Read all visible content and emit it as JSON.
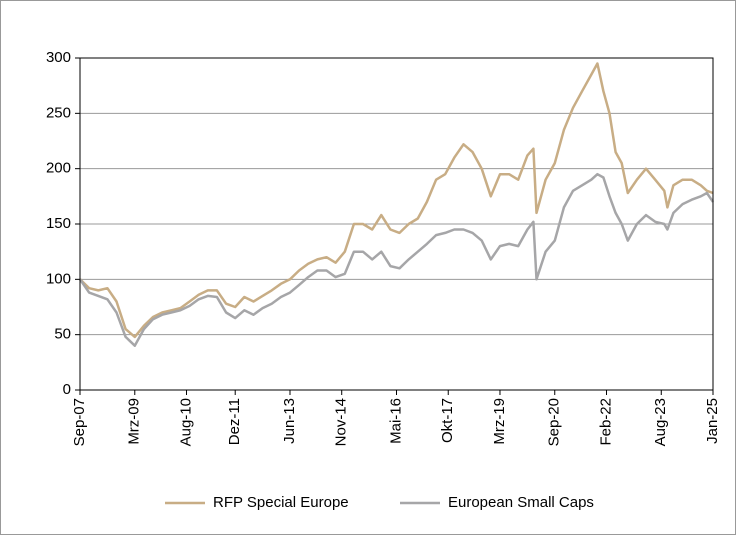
{
  "chart_data": {
    "type": "line",
    "x": [
      "2007-09",
      "2007-12",
      "2008-03",
      "2008-06",
      "2008-09",
      "2008-12",
      "2009-03",
      "2009-06",
      "2009-09",
      "2009-12",
      "2010-03",
      "2010-06",
      "2010-09",
      "2010-12",
      "2011-03",
      "2011-06",
      "2011-09",
      "2011-12",
      "2012-03",
      "2012-06",
      "2012-09",
      "2012-12",
      "2013-03",
      "2013-06",
      "2013-09",
      "2013-12",
      "2014-03",
      "2014-06",
      "2014-09",
      "2014-12",
      "2015-03",
      "2015-06",
      "2015-09",
      "2015-12",
      "2016-03",
      "2016-06",
      "2016-09",
      "2016-12",
      "2017-03",
      "2017-06",
      "2017-09",
      "2017-12",
      "2018-03",
      "2018-06",
      "2018-09",
      "2018-12",
      "2019-03",
      "2019-06",
      "2019-09",
      "2019-12",
      "2020-02",
      "2020-03",
      "2020-06",
      "2020-09",
      "2020-12",
      "2021-03",
      "2021-06",
      "2021-09",
      "2021-11",
      "2022-01",
      "2022-03",
      "2022-05",
      "2022-07",
      "2022-09",
      "2022-12",
      "2023-03",
      "2023-06",
      "2023-09",
      "2023-10",
      "2023-12",
      "2024-03",
      "2024-06",
      "2024-09",
      "2024-11",
      "2025-01"
    ],
    "series": [
      {
        "name": "RFP Special Europe",
        "color": "#c8ad85",
        "values": [
          100,
          92,
          90,
          92,
          80,
          55,
          48,
          58,
          66,
          70,
          72,
          74,
          80,
          86,
          90,
          90,
          78,
          75,
          84,
          80,
          85,
          90,
          96,
          100,
          108,
          114,
          118,
          120,
          115,
          125,
          150,
          150,
          145,
          158,
          145,
          142,
          150,
          155,
          170,
          190,
          195,
          210,
          222,
          215,
          200,
          175,
          195,
          195,
          190,
          212,
          218,
          160,
          190,
          205,
          235,
          255,
          270,
          285,
          295,
          270,
          250,
          215,
          205,
          178,
          190,
          200,
          190,
          180,
          165,
          185,
          190,
          190,
          185,
          180,
          178
        ]
      },
      {
        "name": "European Small Caps",
        "color": "#a6a6a8",
        "values": [
          100,
          88,
          85,
          82,
          70,
          48,
          40,
          55,
          64,
          68,
          70,
          72,
          76,
          82,
          85,
          84,
          70,
          65,
          72,
          68,
          74,
          78,
          84,
          88,
          95,
          102,
          108,
          108,
          102,
          105,
          125,
          125,
          118,
          125,
          112,
          110,
          118,
          125,
          132,
          140,
          142,
          145,
          145,
          142,
          135,
          118,
          130,
          132,
          130,
          145,
          152,
          100,
          125,
          135,
          165,
          180,
          185,
          190,
          195,
          192,
          175,
          160,
          150,
          135,
          150,
          158,
          152,
          150,
          145,
          160,
          168,
          172,
          175,
          178,
          170
        ]
      }
    ],
    "xlim": [
      "2007-09",
      "2025-01"
    ],
    "xticks": [
      {
        "value": "2007-09",
        "label": "Sep-07"
      },
      {
        "value": "2009-03",
        "label": "Mrz-09"
      },
      {
        "value": "2010-08",
        "label": "Aug-10"
      },
      {
        "value": "2011-12",
        "label": "Dez-11"
      },
      {
        "value": "2013-06",
        "label": "Jun-13"
      },
      {
        "value": "2014-11",
        "label": "Nov-14"
      },
      {
        "value": "2016-05",
        "label": "Mai-16"
      },
      {
        "value": "2017-10",
        "label": "Okt-17"
      },
      {
        "value": "2019-03",
        "label": "Mrz-19"
      },
      {
        "value": "2020-09",
        "label": "Sep-20"
      },
      {
        "value": "2022-02",
        "label": "Feb-22"
      },
      {
        "value": "2023-08",
        "label": "Aug-23"
      },
      {
        "value": "2025-01",
        "label": "Jan-25"
      }
    ],
    "ylim": [
      0,
      300
    ],
    "yticks": [
      0,
      50,
      100,
      150,
      200,
      250,
      300
    ],
    "grid": true,
    "legend": "bottom"
  }
}
